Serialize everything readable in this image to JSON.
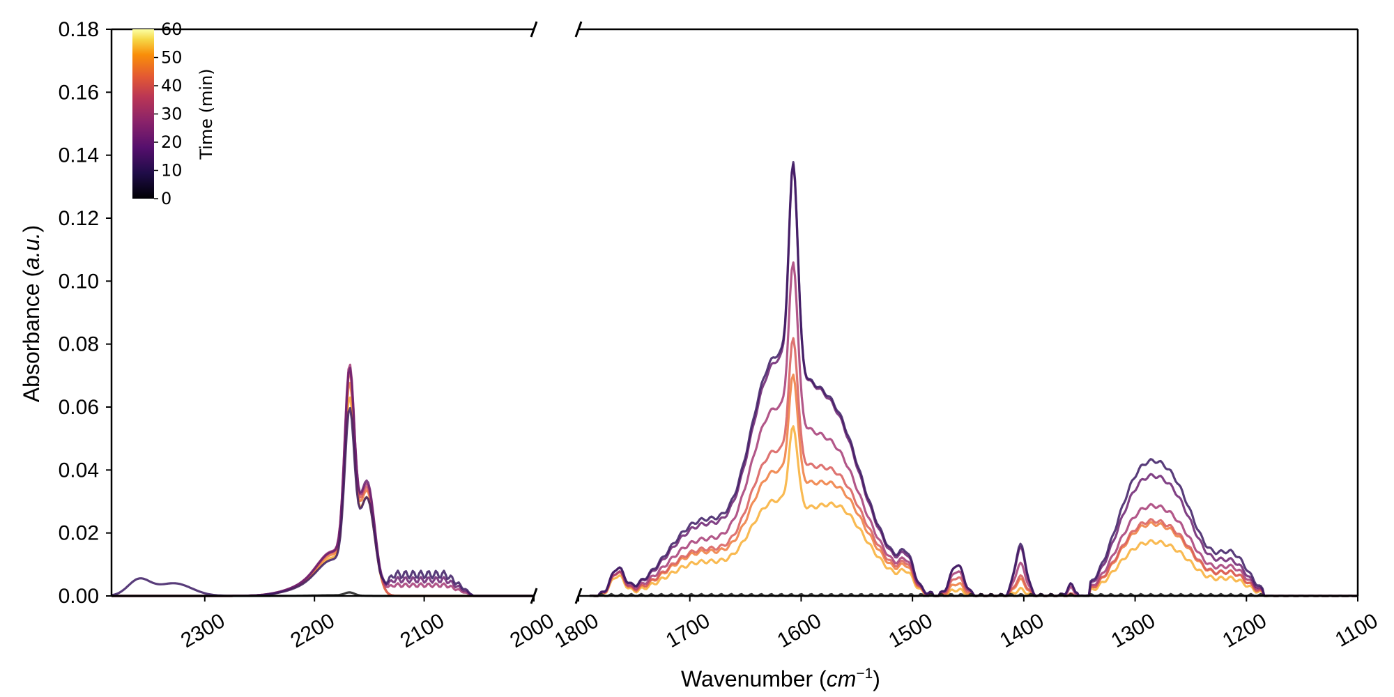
{
  "chart_data": {
    "type": "line",
    "title": "",
    "xlabel": "Wavenumber (cm⁻¹)",
    "ylabel": "Absorbance (a.u.)",
    "ylim": [
      0,
      0.18
    ],
    "y_ticks": [
      "0.00",
      "0.02",
      "0.04",
      "0.06",
      "0.08",
      "0.10",
      "0.12",
      "0.14",
      "0.16",
      "0.18"
    ],
    "panels": [
      {
        "xlim": [
          2385,
          2000
        ],
        "x_ticks": [
          "2300",
          "2200",
          "2100",
          "2000"
        ],
        "reversed": true
      },
      {
        "xlim": [
          1800,
          1100
        ],
        "x_ticks": [
          "1800",
          "1700",
          "1600",
          "1500",
          "1400",
          "1300",
          "1200",
          "1100"
        ],
        "reversed": true
      }
    ],
    "broken_x_axis": true,
    "colorbar": {
      "label": "Time (min)",
      "ticks": [
        "0",
        "10",
        "20",
        "30",
        "40",
        "50",
        "60"
      ],
      "range": [
        0,
        60
      ],
      "colormap": "inferno",
      "placement": "top-left"
    },
    "grid": false,
    "series": [
      {
        "time": 0,
        "color": "#1a1a1a",
        "peaks_left": {
          "2168": 0.001
        },
        "peaks_right": {
          "1605": 0.001
        }
      },
      {
        "time": 10,
        "color": "#3b1a63",
        "peaks_left": {
          "2360": 0.005,
          "2330": 0.004,
          "2168": 0.051,
          "2155": 0.03,
          "2110": 0.008
        },
        "peaks_right": {
          "1765": 0.008,
          "1700": 0.031,
          "1632": 0.095,
          "1607": 0.143,
          "1560": 0.06,
          "1505": 0.016,
          "1460": 0.01,
          "1403": 0.016,
          "1358": 0.003,
          "1275": 0.045,
          "1210": 0.015
        }
      },
      {
        "time": 20,
        "color": "#6b2070",
        "peaks_left": {
          "2168": 0.062,
          "2155": 0.035,
          "2110": 0.006
        },
        "peaks_right": {
          "1765": 0.008,
          "1700": 0.029,
          "1632": 0.09,
          "1607": 0.143,
          "1560": 0.058,
          "1505": 0.015,
          "1460": 0.01,
          "1403": 0.015,
          "1358": 0.003,
          "1275": 0.04,
          "1210": 0.012
        }
      },
      {
        "time": 30,
        "color": "#a53a74",
        "peaks_left": {
          "2168": 0.063,
          "2155": 0.034,
          "2110": 0.004
        },
        "peaks_right": {
          "1765": 0.007,
          "1700": 0.023,
          "1607": 0.109,
          "1560": 0.05,
          "1505": 0.013,
          "1460": 0.008,
          "1403": 0.01,
          "1358": 0.002,
          "1275": 0.03,
          "1210": 0.01
        }
      },
      {
        "time": 40,
        "color": "#d85a58",
        "peaks_left": {
          "2168": 0.061,
          "2155": 0.033
        },
        "peaks_right": {
          "1765": 0.007,
          "1700": 0.019,
          "1607": 0.084,
          "1560": 0.045,
          "1505": 0.012,
          "1460": 0.006,
          "1403": 0.006,
          "1275": 0.025,
          "1210": 0.008
        }
      },
      {
        "time": 50,
        "color": "#ef7a3c",
        "peaks_left": {
          "2168": 0.058,
          "2155": 0.032
        },
        "peaks_right": {
          "1765": 0.007,
          "1700": 0.018,
          "1607": 0.072,
          "1560": 0.042,
          "1505": 0.011,
          "1460": 0.004,
          "1403": 0.005,
          "1275": 0.024,
          "1210": 0.008
        }
      },
      {
        "time": 60,
        "color": "#f8ae34",
        "peaks_left": {
          "2168": 0.054,
          "2155": 0.03
        },
        "peaks_right": {
          "1765": 0.006,
          "1700": 0.014,
          "1607": 0.055,
          "1560": 0.037,
          "1505": 0.009,
          "1460": 0.002,
          "1403": 0.002,
          "1275": 0.018,
          "1210": 0.006
        }
      }
    ]
  }
}
